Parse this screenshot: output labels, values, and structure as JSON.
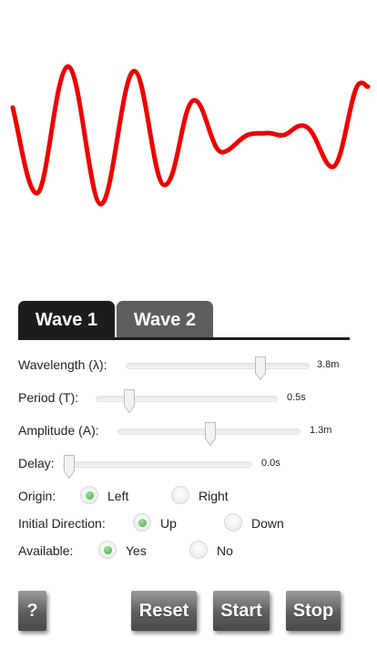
{
  "tabs": [
    {
      "label": "Wave 1",
      "active": true
    },
    {
      "label": "Wave 2",
      "active": false
    }
  ],
  "controls": {
    "wavelength": {
      "label": "Wavelength (λ):",
      "value": "3.8m",
      "position": 0.74
    },
    "period": {
      "label": "Period (T):",
      "value": "0.5s",
      "position": 0.16
    },
    "amplitude": {
      "label": "Amplitude (A):",
      "value": "1.3m",
      "position": 0.5
    },
    "delay": {
      "label": "Delay:",
      "value": "0.0s",
      "position": 0.0
    }
  },
  "radios": {
    "origin": {
      "label": "Origin:",
      "options": [
        "Left",
        "Right"
      ],
      "selected": "Left"
    },
    "direction": {
      "label": "Initial Direction:",
      "options": [
        "Up",
        "Down"
      ],
      "selected": "Up"
    },
    "available": {
      "label": "Available:",
      "options": [
        "Yes",
        "No"
      ],
      "selected": "Yes"
    }
  },
  "buttons": {
    "help": "?",
    "reset": "Reset",
    "start": "Start",
    "stop": "Stop"
  },
  "colors": {
    "wave": "#ee0000",
    "tab_active": "#1c1c1c",
    "tab_inactive": "#5e5e5e"
  }
}
